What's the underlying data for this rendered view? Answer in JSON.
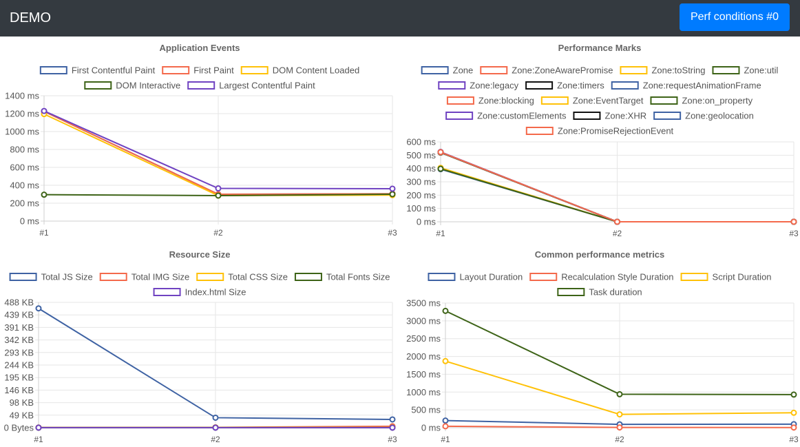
{
  "app": {
    "brand": "DEMO",
    "conditions_button": "Perf conditions #0"
  },
  "colors": {
    "navbar": "#343a40",
    "button": "#007bff",
    "grid": "#e6e6e6",
    "axis": "#cfcfcf",
    "text": "#555555",
    "title": "#666666"
  },
  "chart_data": [
    {
      "id": "application-events",
      "type": "line",
      "title": "Application Events",
      "categories": [
        "#1",
        "#2",
        "#3"
      ],
      "ylim": [
        0,
        1400
      ],
      "yticks": [
        0,
        200,
        400,
        600,
        800,
        1000,
        1200,
        1400
      ],
      "ytick_labels": [
        "0 ms",
        "200 ms",
        "400 ms",
        "600 ms",
        "800 ms",
        "1000 ms",
        "1200 ms",
        "1400 ms"
      ],
      "grid": true,
      "legend_rows": [
        [
          0,
          1,
          2
        ],
        [
          3,
          4
        ]
      ],
      "series": [
        {
          "name": "First Contentful Paint",
          "color": "#3e62a3",
          "values": [
            1225,
            300,
            305
          ]
        },
        {
          "name": "First Paint",
          "color": "#f4694b",
          "values": [
            1225,
            300,
            305
          ]
        },
        {
          "name": "DOM Content Loaded",
          "color": "#ffc107",
          "values": [
            1195,
            285,
            290
          ]
        },
        {
          "name": "DOM Interactive",
          "color": "#3d6317",
          "values": [
            295,
            285,
            300
          ]
        },
        {
          "name": "Largest Contentful Paint",
          "color": "#6f42c1",
          "values": [
            1230,
            365,
            362
          ]
        }
      ]
    },
    {
      "id": "performance-marks",
      "type": "line",
      "title": "Performance Marks",
      "categories": [
        "#1",
        "#2",
        "#3"
      ],
      "ylim": [
        0,
        600
      ],
      "yticks": [
        0,
        100,
        200,
        300,
        400,
        500,
        600
      ],
      "ytick_labels": [
        "0 ms",
        "100 ms",
        "200 ms",
        "300 ms",
        "400 ms",
        "500 ms",
        "600 ms"
      ],
      "grid": true,
      "legend_rows": [
        [
          0,
          1,
          2,
          3
        ],
        [
          4,
          5,
          6
        ],
        [
          7,
          8,
          9
        ],
        [
          10,
          11,
          12
        ],
        [
          13
        ]
      ],
      "series": [
        {
          "name": "Zone",
          "color": "#3e62a3",
          "values": [
            395,
            0,
            0
          ]
        },
        {
          "name": "Zone:ZoneAwarePromise",
          "color": "#f4694b",
          "values": [
            400,
            0,
            0
          ]
        },
        {
          "name": "Zone:toString",
          "color": "#ffc107",
          "values": [
            405,
            0,
            0
          ]
        },
        {
          "name": "Zone:util",
          "color": "#3d6317",
          "values": [
            398,
            0,
            0
          ]
        },
        {
          "name": "Zone:legacy",
          "color": "#6f42c1",
          "values": [
            525,
            0,
            0
          ]
        },
        {
          "name": "Zone:timers",
          "color": "#111111",
          "values": [
            520,
            0,
            0
          ]
        },
        {
          "name": "Zone:requestAnimationFrame",
          "color": "#3e62a3",
          "values": [
            520,
            0,
            0
          ]
        },
        {
          "name": "Zone:blocking",
          "color": "#f4694b",
          "values": [
            520,
            0,
            0
          ]
        },
        {
          "name": "Zone:EventTarget",
          "color": "#ffc107",
          "values": [
            520,
            0,
            0
          ]
        },
        {
          "name": "Zone:on_property",
          "color": "#3d6317",
          "values": [
            520,
            0,
            0
          ]
        },
        {
          "name": "Zone:customElements",
          "color": "#6f42c1",
          "values": [
            522,
            0,
            0
          ]
        },
        {
          "name": "Zone:XHR",
          "color": "#111111",
          "values": [
            522,
            0,
            0
          ]
        },
        {
          "name": "Zone:geolocation",
          "color": "#3e62a3",
          "values": [
            522,
            0,
            0
          ]
        },
        {
          "name": "Zone:PromiseRejectionEvent",
          "color": "#f4694b",
          "values": [
            523,
            0,
            0
          ]
        }
      ]
    },
    {
      "id": "resource-size",
      "type": "line",
      "title": "Resource Size",
      "categories": [
        "#1",
        "#2",
        "#3"
      ],
      "ylim": [
        0,
        500000
      ],
      "yticks": [
        0,
        50000,
        100000,
        150000,
        200000,
        250000,
        300000,
        350000,
        400000,
        450000,
        500000
      ],
      "ytick_labels": [
        "0 Bytes",
        "49 KB",
        "98 KB",
        "146 KB",
        "195 KB",
        "244 KB",
        "293 KB",
        "342 KB",
        "391 KB",
        "439 KB",
        "488 KB"
      ],
      "grid": true,
      "legend_rows": [
        [
          0,
          1,
          2,
          3
        ],
        [
          4
        ]
      ],
      "series": [
        {
          "name": "Total JS Size",
          "color": "#3e62a3",
          "values": [
            476000,
            40000,
            33000
          ]
        },
        {
          "name": "Total IMG Size",
          "color": "#f4694b",
          "values": [
            800,
            1500,
            6000
          ]
        },
        {
          "name": "Total CSS Size",
          "color": "#ffc107",
          "values": [
            600,
            1200,
            1500
          ]
        },
        {
          "name": "Total Fonts Size",
          "color": "#3d6317",
          "values": [
            300,
            400,
            400
          ]
        },
        {
          "name": "Index.html Size",
          "color": "#6f42c1",
          "values": [
            200,
            250,
            250
          ]
        }
      ]
    },
    {
      "id": "common-performance-metrics",
      "type": "line",
      "title": "Common performance metrics",
      "categories": [
        "#1",
        "#2",
        "#3"
      ],
      "ylim": [
        0,
        3500
      ],
      "yticks": [
        0,
        500,
        1000,
        1500,
        2000,
        2500,
        3000,
        3500
      ],
      "ytick_labels": [
        "0 ms",
        "500 ms",
        "1000 ms",
        "1500 ms",
        "2000 ms",
        "2500 ms",
        "3000 ms",
        "3500 ms"
      ],
      "grid": true,
      "legend_rows": [
        [
          0,
          1,
          2
        ],
        [
          3
        ]
      ],
      "series": [
        {
          "name": "Layout Duration",
          "color": "#3e62a3",
          "values": [
            200,
            95,
            100
          ]
        },
        {
          "name": "Recalculation Style Duration",
          "color": "#f4694b",
          "values": [
            40,
            8,
            5
          ]
        },
        {
          "name": "Script Duration",
          "color": "#ffc107",
          "values": [
            1870,
            375,
            420
          ]
        },
        {
          "name": "Task duration",
          "color": "#3d6317",
          "values": [
            3280,
            940,
            930
          ]
        }
      ]
    }
  ]
}
